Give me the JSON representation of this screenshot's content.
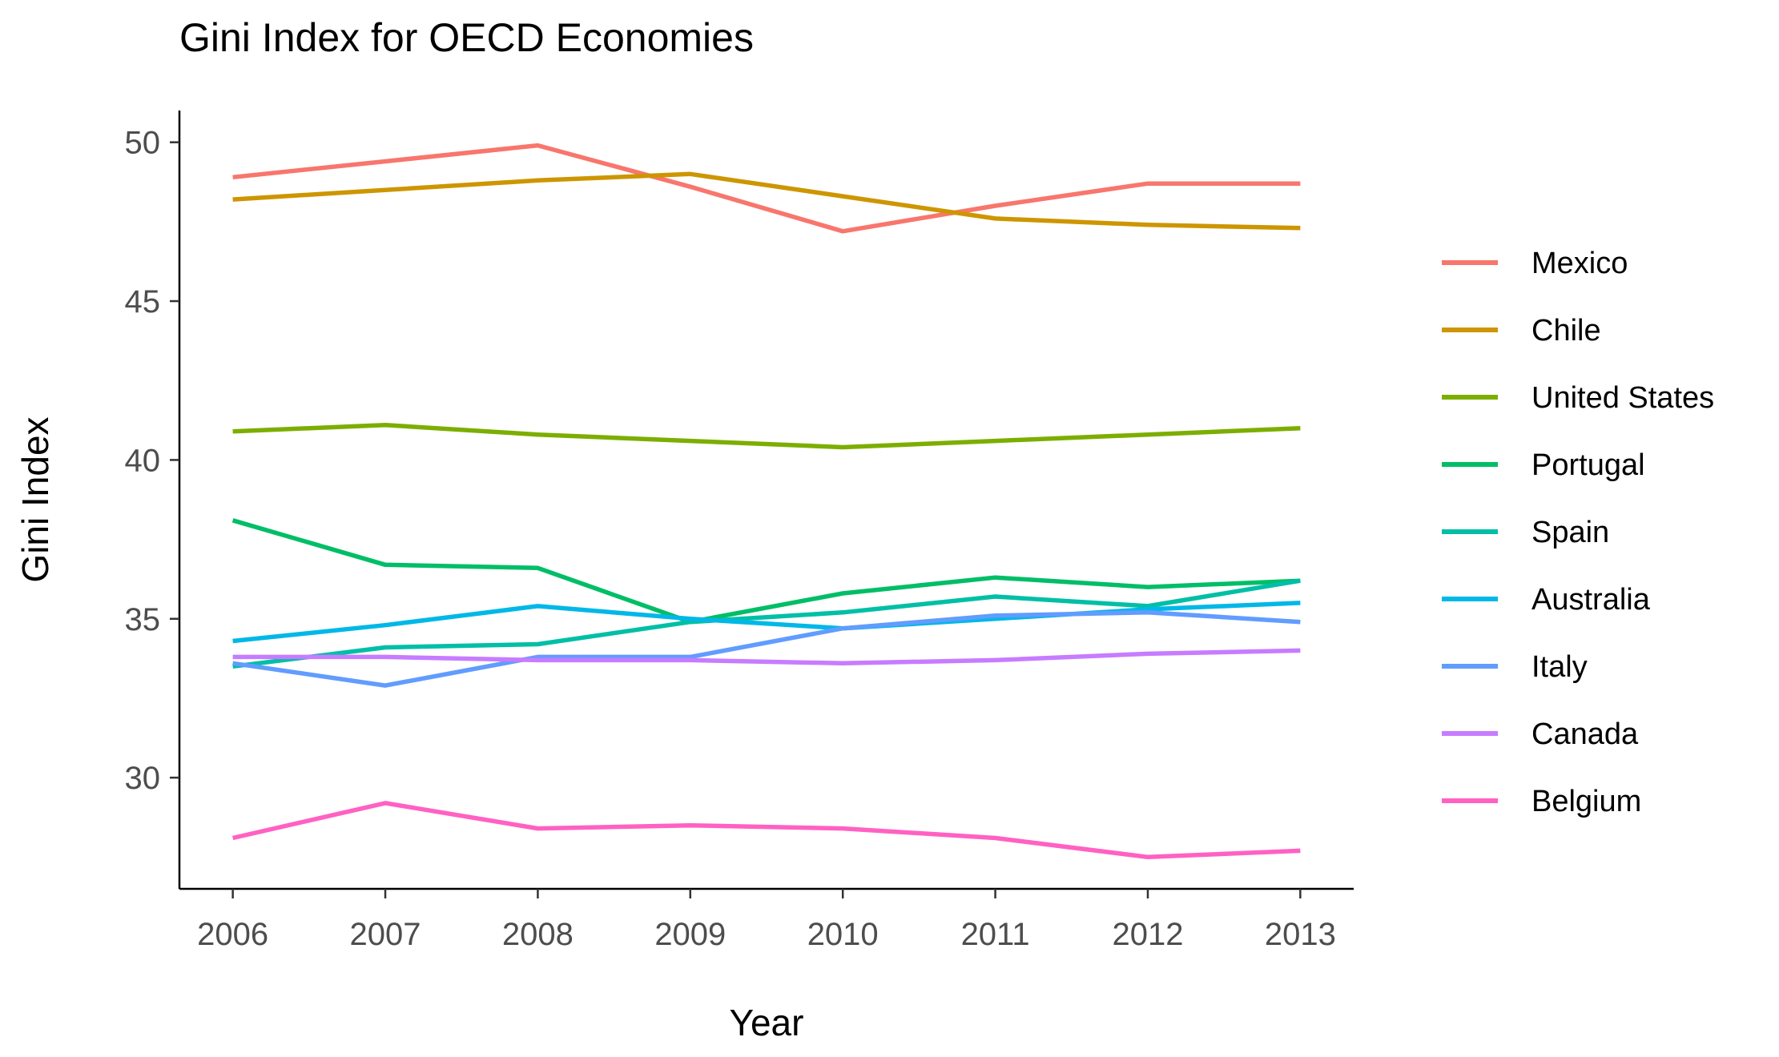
{
  "chart_data": {
    "type": "line",
    "title": "Gini Index for OECD Economies",
    "xlabel": "Year",
    "ylabel": "Gini Index",
    "x": [
      2006,
      2007,
      2008,
      2009,
      2010,
      2011,
      2012,
      2013
    ],
    "x_tick_labels": [
      "2006",
      "2007",
      "2008",
      "2009",
      "2010",
      "2011",
      "2012",
      "2013"
    ],
    "y_ticks": [
      30,
      35,
      40,
      45,
      50
    ],
    "y_tick_labels": [
      "30",
      "35",
      "40",
      "45",
      "50"
    ],
    "xlim": [
      2005.65,
      2013.35
    ],
    "ylim": [
      26.5,
      51.0
    ],
    "grid": false,
    "legend_position": "right",
    "series": [
      {
        "name": "Mexico",
        "color": "#F8766D",
        "values": [
          48.9,
          49.4,
          49.9,
          48.6,
          47.2,
          48.0,
          48.7,
          48.7
        ]
      },
      {
        "name": "Chile",
        "color": "#CD9600",
        "values": [
          48.2,
          48.5,
          48.8,
          49.0,
          48.3,
          47.6,
          47.4,
          47.3
        ]
      },
      {
        "name": "United States",
        "color": "#7CAE00",
        "values": [
          40.9,
          41.1,
          40.8,
          40.6,
          40.4,
          40.6,
          40.8,
          41.0
        ]
      },
      {
        "name": "Portugal",
        "color": "#00BE67",
        "values": [
          38.1,
          36.7,
          36.6,
          34.9,
          35.8,
          36.3,
          36.0,
          36.2
        ]
      },
      {
        "name": "Spain",
        "color": "#00BFA6",
        "values": [
          33.5,
          34.1,
          34.2,
          34.9,
          35.2,
          35.7,
          35.4,
          36.2
        ]
      },
      {
        "name": "Australia",
        "color": "#00B8E7",
        "values": [
          34.3,
          34.8,
          35.4,
          35.0,
          34.7,
          35.0,
          35.3,
          35.5
        ]
      },
      {
        "name": "Italy",
        "color": "#619CFF",
        "values": [
          33.6,
          32.9,
          33.8,
          33.8,
          34.7,
          35.1,
          35.2,
          34.9
        ]
      },
      {
        "name": "Canada",
        "color": "#C77CFF",
        "values": [
          33.8,
          33.8,
          33.7,
          33.7,
          33.6,
          33.7,
          33.9,
          34.0
        ]
      },
      {
        "name": "Belgium",
        "color": "#FF61C3",
        "values": [
          28.1,
          29.2,
          28.4,
          28.5,
          28.4,
          28.1,
          27.5,
          27.7
        ]
      }
    ]
  }
}
